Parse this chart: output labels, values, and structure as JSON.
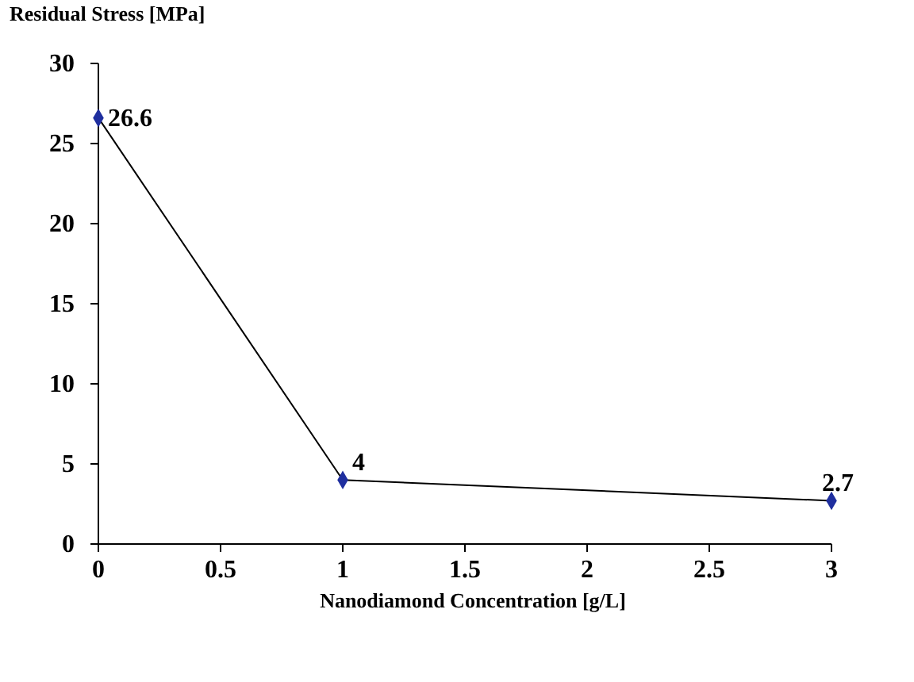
{
  "chart_data": {
    "type": "line",
    "title": "Residual Stress [MPa]",
    "xlabel": "Nanodiamond Concentration [g/L]",
    "x": [
      0,
      1,
      3
    ],
    "series": [
      {
        "color": "#1f2f9f",
        "values": [
          26.6,
          4,
          2.7
        ]
      }
    ],
    "xlim": [
      0,
      3
    ],
    "xticks": [
      0,
      0.5,
      1,
      1.5,
      2,
      2.5,
      3
    ],
    "ylim": [
      0,
      30
    ],
    "yticks": [
      0,
      5,
      10,
      15,
      20,
      25,
      30
    ],
    "marker": "diamond",
    "line_style": "solid",
    "data_labels": true
  }
}
